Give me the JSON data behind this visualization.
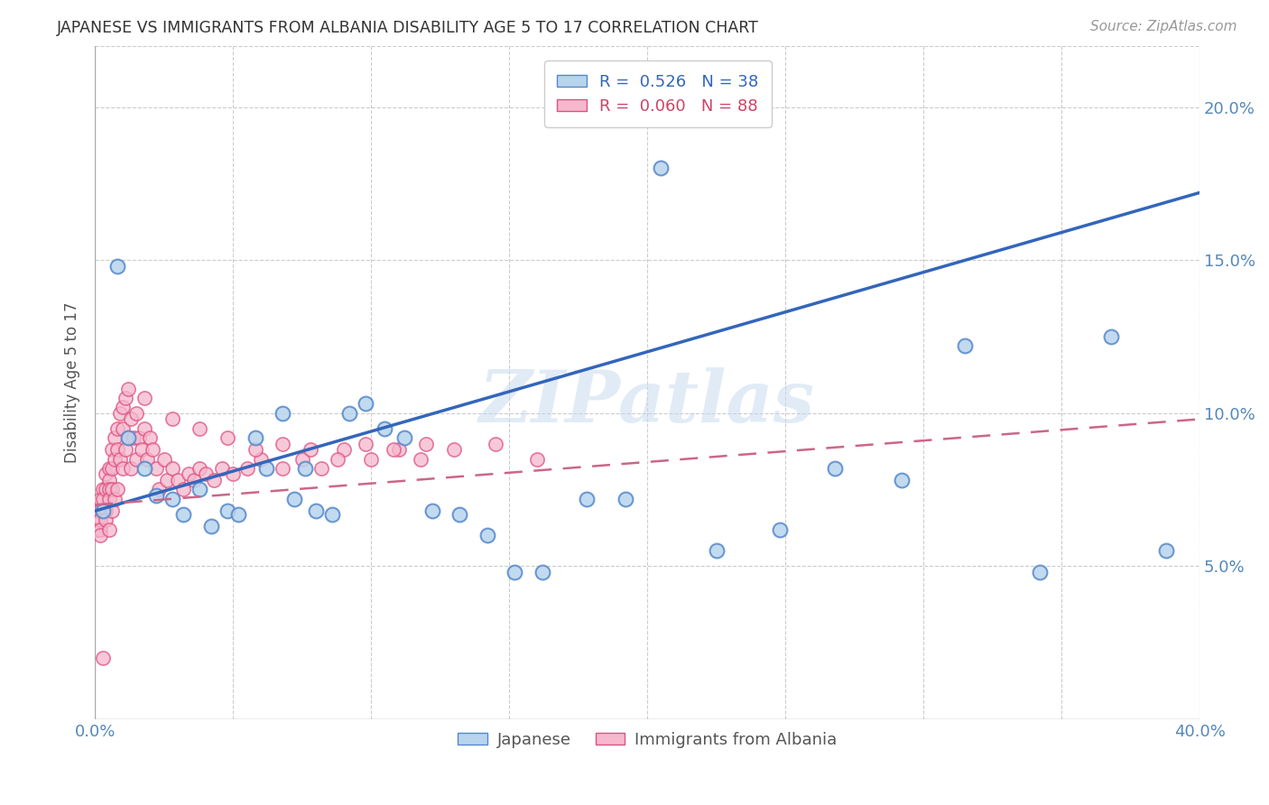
{
  "title": "JAPANESE VS IMMIGRANTS FROM ALBANIA DISABILITY AGE 5 TO 17 CORRELATION CHART",
  "source": "Source: ZipAtlas.com",
  "ylabel": "Disability Age 5 to 17",
  "xlim": [
    0.0,
    0.4
  ],
  "ylim": [
    0.0,
    0.22
  ],
  "xticks": [
    0.0,
    0.05,
    0.1,
    0.15,
    0.2,
    0.25,
    0.3,
    0.35,
    0.4
  ],
  "xticklabels": [
    "0.0%",
    "",
    "",
    "",
    "",
    "",
    "",
    "",
    "40.0%"
  ],
  "yticks": [
    0.0,
    0.05,
    0.1,
    0.15,
    0.2
  ],
  "yticklabels_left": [
    "",
    "",
    "",
    "",
    ""
  ],
  "yticklabels_right": [
    "",
    "5.0%",
    "10.0%",
    "15.0%",
    "20.0%"
  ],
  "watermark": "ZIPatlas",
  "japanese_color": "#b8d4ed",
  "japanese_edge": "#5588cc",
  "albania_color": "#f5b8cc",
  "albania_edge": "#e05080",
  "trendline_japanese_color": "#3366bb",
  "trendline_albania_color": "#cc6688",
  "background_color": "#ffffff",
  "grid_color": "#cccccc",
  "jap_trend_x0": 0.0,
  "jap_trend_y0": 0.068,
  "jap_trend_x1": 0.4,
  "jap_trend_y1": 0.172,
  "alb_trend_x0": 0.0,
  "alb_trend_y0": 0.07,
  "alb_trend_x1": 0.4,
  "alb_trend_y1": 0.098,
  "japanese_pts_x": [
    0.003,
    0.008,
    0.012,
    0.018,
    0.022,
    0.028,
    0.032,
    0.038,
    0.042,
    0.048,
    0.052,
    0.058,
    0.062,
    0.068,
    0.072,
    0.076,
    0.08,
    0.086,
    0.092,
    0.098,
    0.105,
    0.112,
    0.122,
    0.132,
    0.142,
    0.152,
    0.162,
    0.178,
    0.192,
    0.205,
    0.225,
    0.248,
    0.268,
    0.292,
    0.315,
    0.342,
    0.368,
    0.388
  ],
  "japanese_pts_y": [
    0.068,
    0.148,
    0.092,
    0.082,
    0.073,
    0.072,
    0.067,
    0.075,
    0.063,
    0.068,
    0.067,
    0.092,
    0.082,
    0.1,
    0.072,
    0.082,
    0.068,
    0.067,
    0.1,
    0.103,
    0.095,
    0.092,
    0.068,
    0.067,
    0.06,
    0.048,
    0.048,
    0.072,
    0.072,
    0.18,
    0.055,
    0.062,
    0.082,
    0.078,
    0.122,
    0.048,
    0.125,
    0.055
  ],
  "albania_pts_x": [
    0.001,
    0.001,
    0.001,
    0.002,
    0.002,
    0.002,
    0.002,
    0.002,
    0.003,
    0.003,
    0.003,
    0.003,
    0.004,
    0.004,
    0.004,
    0.004,
    0.005,
    0.005,
    0.005,
    0.005,
    0.005,
    0.006,
    0.006,
    0.006,
    0.006,
    0.007,
    0.007,
    0.007,
    0.008,
    0.008,
    0.008,
    0.009,
    0.009,
    0.01,
    0.01,
    0.01,
    0.011,
    0.011,
    0.012,
    0.012,
    0.013,
    0.013,
    0.014,
    0.015,
    0.015,
    0.016,
    0.017,
    0.018,
    0.019,
    0.02,
    0.021,
    0.022,
    0.023,
    0.025,
    0.026,
    0.028,
    0.03,
    0.032,
    0.034,
    0.036,
    0.038,
    0.04,
    0.043,
    0.046,
    0.05,
    0.055,
    0.06,
    0.068,
    0.075,
    0.082,
    0.09,
    0.1,
    0.11,
    0.12,
    0.018,
    0.028,
    0.038,
    0.048,
    0.058,
    0.068,
    0.078,
    0.088,
    0.098,
    0.108,
    0.118,
    0.13,
    0.145,
    0.16
  ],
  "albania_pts_y": [
    0.068,
    0.065,
    0.062,
    0.072,
    0.068,
    0.065,
    0.062,
    0.06,
    0.075,
    0.072,
    0.068,
    0.02,
    0.08,
    0.075,
    0.068,
    0.065,
    0.082,
    0.078,
    0.075,
    0.072,
    0.062,
    0.088,
    0.082,
    0.075,
    0.068,
    0.092,
    0.085,
    0.072,
    0.095,
    0.088,
    0.075,
    0.1,
    0.085,
    0.102,
    0.095,
    0.082,
    0.105,
    0.088,
    0.108,
    0.092,
    0.098,
    0.082,
    0.092,
    0.1,
    0.085,
    0.092,
    0.088,
    0.095,
    0.085,
    0.092,
    0.088,
    0.082,
    0.075,
    0.085,
    0.078,
    0.082,
    0.078,
    0.075,
    0.08,
    0.078,
    0.082,
    0.08,
    0.078,
    0.082,
    0.08,
    0.082,
    0.085,
    0.082,
    0.085,
    0.082,
    0.088,
    0.085,
    0.088,
    0.09,
    0.105,
    0.098,
    0.095,
    0.092,
    0.088,
    0.09,
    0.088,
    0.085,
    0.09,
    0.088,
    0.085,
    0.088,
    0.09,
    0.085
  ]
}
